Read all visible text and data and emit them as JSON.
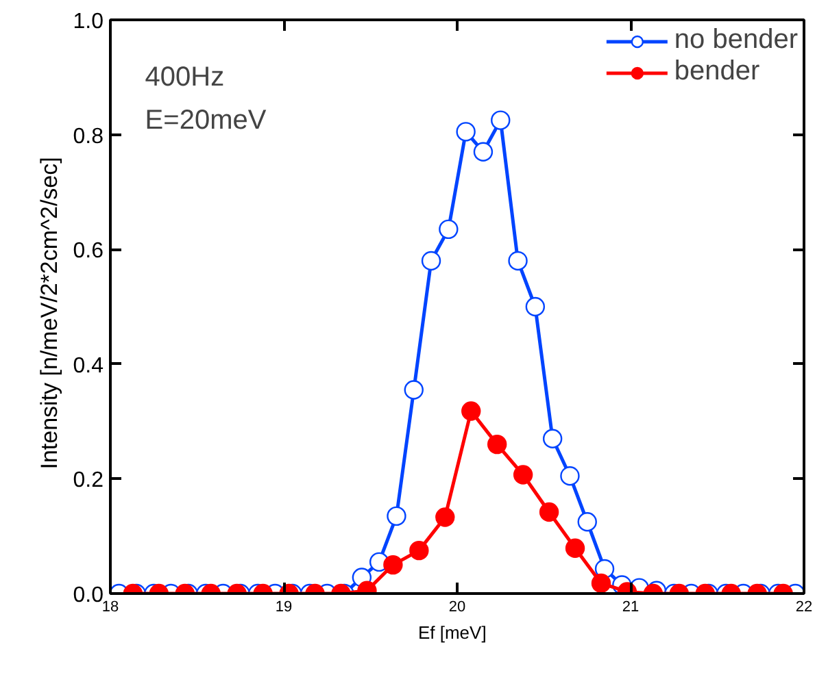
{
  "chart_data": {
    "type": "line",
    "xlabel": "Ef   [meV]",
    "ylabel": "Intensity   [n/meV/2*2cm^2/sec]",
    "annotations": [
      "400Hz",
      "E=20meV"
    ],
    "xlim": [
      18,
      22
    ],
    "xticks": [
      18,
      19,
      20,
      21,
      22
    ],
    "ylim": [
      0,
      1.0
    ],
    "yticks": [
      {
        "value": 0,
        "label": "0.0"
      },
      {
        "value": 0.2,
        "label": "0.2"
      },
      {
        "value": 0.4,
        "label": "0.4"
      },
      {
        "value": 0.6,
        "label": "0.6"
      },
      {
        "value": 0.8,
        "label": "0.8"
      },
      {
        "value": 1.0,
        "label": "1.0"
      }
    ],
    "grid": false,
    "legend": "top right",
    "line_style": "solid",
    "series": [
      {
        "name": "no bender",
        "color": "#0044ff",
        "marker": "circle_open",
        "x": [
          18.05,
          18.15,
          18.25,
          18.35,
          18.45,
          18.55,
          18.65,
          18.75,
          18.85,
          18.95,
          19.05,
          19.15,
          19.25,
          19.35,
          19.45,
          19.55,
          19.65,
          19.75,
          19.85,
          19.95,
          20.05,
          20.15,
          20.25,
          20.35,
          20.45,
          20.55,
          20.65,
          20.75,
          20.85,
          20.95,
          21.05,
          21.15,
          21.25,
          21.35,
          21.45,
          21.55,
          21.65,
          21.75,
          21.85,
          21.95
        ],
        "values": [
          0,
          0,
          0,
          0,
          0,
          0,
          0,
          0,
          0,
          0,
          0,
          0,
          0,
          0,
          0.028,
          0.055,
          0.135,
          0.355,
          0.58,
          0.635,
          0.805,
          0.77,
          0.825,
          0.58,
          0.5,
          0.27,
          0.205,
          0.125,
          0.043,
          0.015,
          0.01,
          0.005,
          0,
          0,
          0,
          0,
          0,
          0,
          0,
          0
        ]
      },
      {
        "name": "bender",
        "color": "#ff0000",
        "marker": "circle",
        "x": [
          18.13,
          18.28,
          18.43,
          18.58,
          18.73,
          18.88,
          19.03,
          19.18,
          19.33,
          19.48,
          19.63,
          19.78,
          19.93,
          20.08,
          20.23,
          20.38,
          20.53,
          20.68,
          20.83,
          20.98,
          21.13,
          21.28,
          21.43,
          21.58,
          21.73,
          21.88
        ],
        "values": [
          0,
          0,
          0,
          0,
          0,
          0,
          0,
          0,
          0,
          0.005,
          0.05,
          0.075,
          0.133,
          0.318,
          0.26,
          0.207,
          0.142,
          0.079,
          0.018,
          0.003,
          0,
          0,
          0,
          0,
          0,
          0
        ]
      }
    ]
  }
}
